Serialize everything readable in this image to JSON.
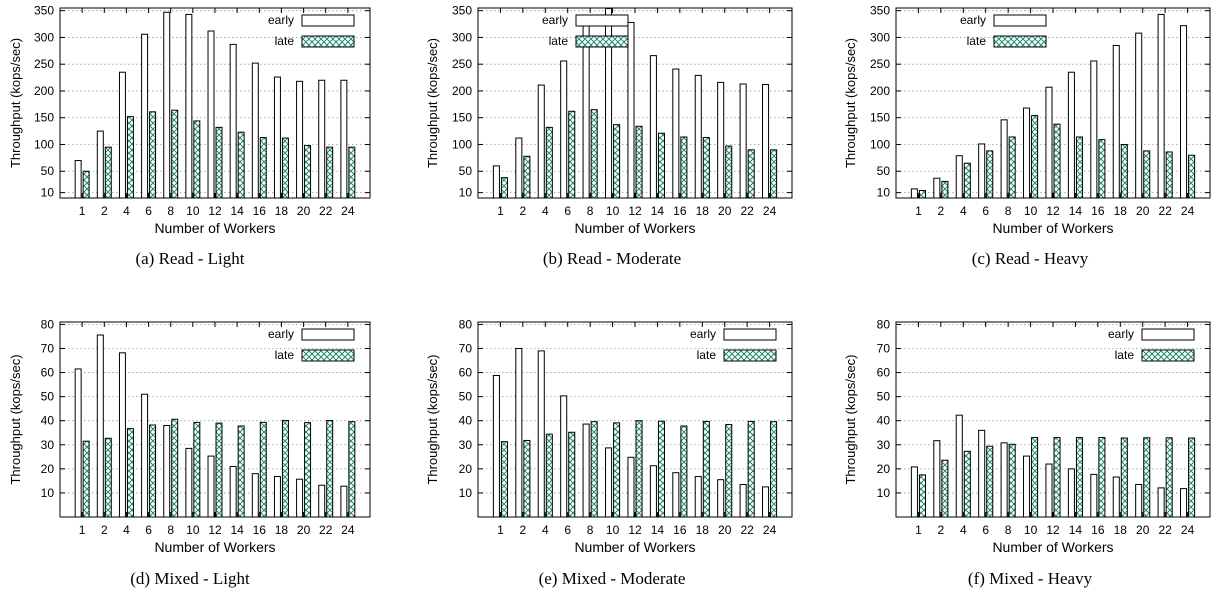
{
  "pattern": {
    "green": "#1f8a70"
  },
  "chart_data": [
    {
      "type": "bar",
      "caption": "(a)  Read - Light",
      "xlabel": "Number of Workers",
      "ylabel": "Throughput (kops/sec)",
      "categories": [
        "1",
        "2",
        "4",
        "6",
        "8",
        "10",
        "12",
        "14",
        "16",
        "18",
        "20",
        "22",
        "24"
      ],
      "yticks": [
        10,
        50,
        100,
        150,
        200,
        250,
        300,
        350
      ],
      "ylim": [
        0,
        355
      ],
      "grid": true,
      "legend": "top-right",
      "series": [
        {
          "name": "early",
          "values": [
            70,
            125,
            235,
            306,
            347,
            343,
            312,
            287,
            252,
            226,
            218,
            220,
            220
          ]
        },
        {
          "name": "late",
          "values": [
            50,
            95,
            152,
            161,
            164,
            144,
            132,
            123,
            113,
            112,
            98,
            95,
            95
          ]
        }
      ]
    },
    {
      "type": "bar",
      "caption": "(b)  Read - Moderate",
      "xlabel": "Number of Workers",
      "ylabel": "Throughput (kops/sec)",
      "categories": [
        "1",
        "2",
        "4",
        "6",
        "8",
        "10",
        "12",
        "14",
        "16",
        "18",
        "20",
        "22",
        "24"
      ],
      "yticks": [
        10,
        50,
        100,
        150,
        200,
        250,
        300,
        350
      ],
      "ylim": [
        0,
        355
      ],
      "grid": true,
      "legend": "top-left",
      "series": [
        {
          "name": "early",
          "values": [
            60,
            112,
            211,
            256,
            338,
            354,
            328,
            266,
            241,
            229,
            216,
            213,
            212
          ]
        },
        {
          "name": "late",
          "values": [
            38,
            78,
            132,
            162,
            165,
            137,
            134,
            121,
            114,
            113,
            97,
            90,
            90
          ]
        }
      ]
    },
    {
      "type": "bar",
      "caption": "(c)  Read - Heavy",
      "xlabel": "Number of Workers",
      "ylabel": "Throughput (kops/sec)",
      "categories": [
        "1",
        "2",
        "4",
        "6",
        "8",
        "10",
        "12",
        "14",
        "16",
        "18",
        "20",
        "22",
        "24"
      ],
      "yticks": [
        10,
        50,
        100,
        150,
        200,
        250,
        300,
        350
      ],
      "ylim": [
        0,
        355
      ],
      "grid": true,
      "legend": "top-left",
      "series": [
        {
          "name": "early",
          "values": [
            17,
            37,
            79,
            101,
            146,
            168,
            207,
            235,
            256,
            285,
            308,
            343,
            322
          ]
        },
        {
          "name": "late",
          "values": [
            14,
            31,
            65,
            88,
            114,
            154,
            138,
            114,
            109,
            100,
            88,
            86,
            80
          ]
        }
      ]
    },
    {
      "type": "bar",
      "caption": "(d)  Mixed - Light",
      "xlabel": "Number of Workers",
      "ylabel": "Throughput (kops/sec)",
      "categories": [
        "1",
        "2",
        "4",
        "6",
        "8",
        "10",
        "12",
        "14",
        "16",
        "18",
        "20",
        "22",
        "24"
      ],
      "yticks": [
        10,
        20,
        30,
        40,
        50,
        60,
        70,
        80
      ],
      "ylim": [
        0,
        81
      ],
      "grid": true,
      "legend": "top-right",
      "series": [
        {
          "name": "early",
          "values": [
            61.5,
            75.6,
            68.2,
            51,
            38,
            28.5,
            25.3,
            21,
            18,
            16.8,
            15.7,
            13.2,
            12.8
          ]
        },
        {
          "name": "late",
          "values": [
            31.5,
            32.7,
            36.7,
            38.2,
            40.6,
            39.3,
            39,
            37.8,
            39.3,
            40.1,
            39.2,
            40.1,
            39.6
          ]
        }
      ]
    },
    {
      "type": "bar",
      "caption": "(e)  Mixed - Moderate",
      "xlabel": "Number of Workers",
      "ylabel": "Throughput (kops/sec)",
      "categories": [
        "1",
        "2",
        "4",
        "6",
        "8",
        "10",
        "12",
        "14",
        "16",
        "18",
        "20",
        "22",
        "24"
      ],
      "yticks": [
        10,
        20,
        30,
        40,
        50,
        60,
        70,
        80
      ],
      "ylim": [
        0,
        81
      ],
      "grid": true,
      "legend": "top-right",
      "series": [
        {
          "name": "early",
          "values": [
            58.8,
            70,
            69,
            50.3,
            38.6,
            28.7,
            24.8,
            21.3,
            18.4,
            16.8,
            15.5,
            13.5,
            12.5
          ]
        },
        {
          "name": "late",
          "values": [
            31.3,
            31.8,
            34.4,
            35.2,
            39.6,
            39.1,
            40,
            39.8,
            37.8,
            39.7,
            38.4,
            39.7,
            39.6
          ]
        }
      ]
    },
    {
      "type": "bar",
      "caption": "(f)  Mixed - Heavy",
      "xlabel": "Number of Workers",
      "ylabel": "Throughput (kops/sec)",
      "categories": [
        "1",
        "2",
        "4",
        "6",
        "8",
        "10",
        "12",
        "14",
        "16",
        "18",
        "20",
        "22",
        "24"
      ],
      "yticks": [
        10,
        20,
        30,
        40,
        50,
        60,
        70,
        80
      ],
      "ylim": [
        0,
        81
      ],
      "grid": true,
      "legend": "top-right",
      "series": [
        {
          "name": "early",
          "values": [
            20.8,
            31.7,
            42.3,
            36,
            30.8,
            25.3,
            22,
            20,
            17.7,
            16.6,
            13.5,
            12.1,
            11.8
          ]
        },
        {
          "name": "late",
          "values": [
            17.5,
            23.6,
            27.3,
            29.4,
            30.2,
            33,
            33,
            33,
            33,
            32.8,
            32.9,
            32.9,
            32.8
          ]
        }
      ]
    }
  ]
}
